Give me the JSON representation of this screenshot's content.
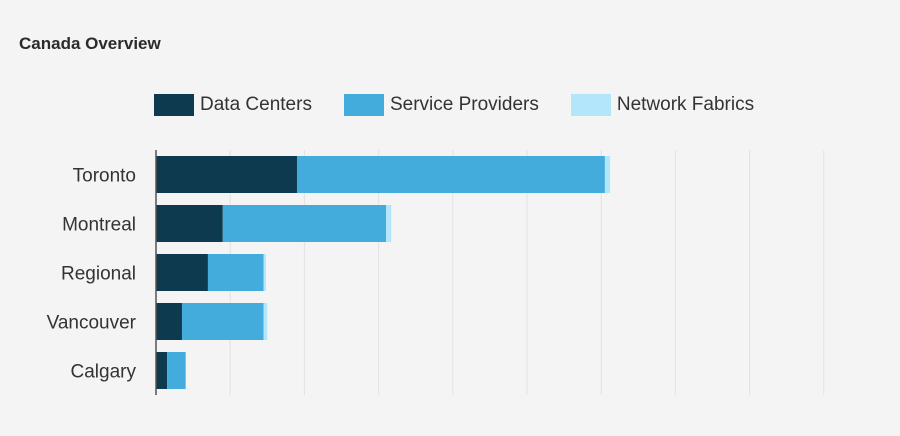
{
  "title": "Canada Overview",
  "colors": {
    "data_centers": "#0e3a4f",
    "service_providers": "#44acdc",
    "network_fabrics": "#b3e6fa",
    "grid": "#e2e2e2",
    "axis": "#555555"
  },
  "chart_data": {
    "type": "bar",
    "orientation": "horizontal",
    "stacked": true,
    "categories": [
      "Toronto",
      "Montreal",
      "Regional",
      "Vancouver",
      "Calgary"
    ],
    "series": [
      {
        "name": "Data Centers",
        "values": [
          19,
          9,
          7,
          3.5,
          1.5
        ]
      },
      {
        "name": "Service Providers",
        "values": [
          41.5,
          22,
          7.5,
          11,
          2.5
        ]
      },
      {
        "name": "Network Fabrics",
        "values": [
          0.7,
          0.7,
          0.3,
          0.5,
          0
        ]
      }
    ],
    "xlim": [
      0,
      100
    ],
    "grid": true,
    "legend_position": "top"
  }
}
